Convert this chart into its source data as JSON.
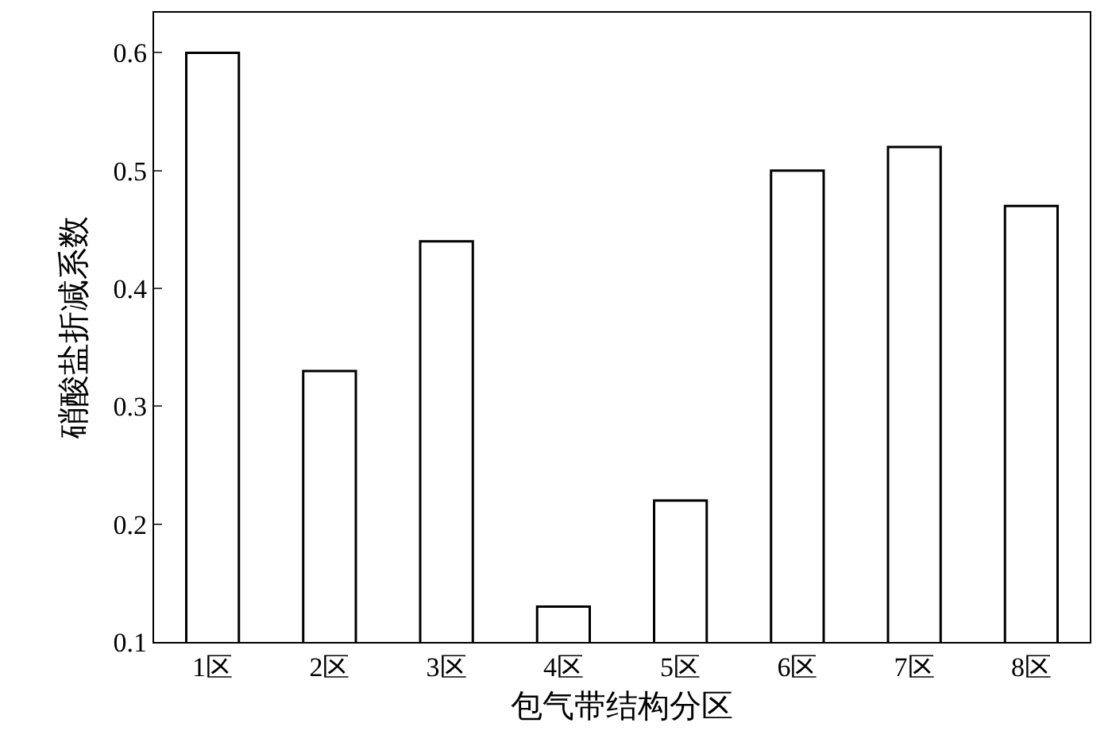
{
  "chart_data": {
    "type": "bar",
    "xlabel": "包气带结构分区",
    "ylabel": "硝酸盐折减系数",
    "categories": [
      "1区",
      "2区",
      "3区",
      "4区",
      "5区",
      "6区",
      "7区",
      "8区"
    ],
    "values": [
      0.6,
      0.33,
      0.44,
      0.13,
      0.22,
      0.5,
      0.52,
      0.47
    ],
    "color": "#ffffff",
    "ylim": [
      0.1,
      0.634
    ],
    "yticks": [
      0.1,
      0.2,
      0.3,
      0.4,
      0.5,
      0.6
    ]
  }
}
